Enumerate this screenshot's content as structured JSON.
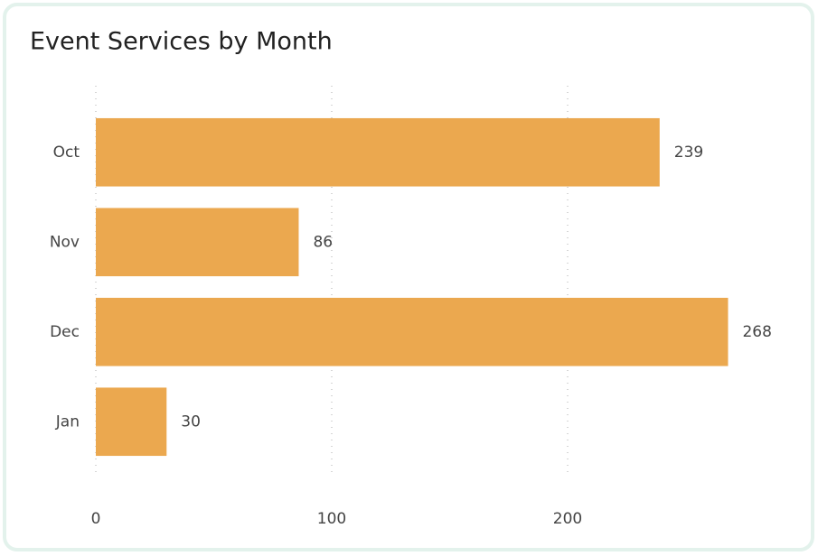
{
  "chart_data": {
    "type": "bar",
    "orientation": "horizontal",
    "title": "Event Services by Month",
    "categories": [
      "Oct",
      "Nov",
      "Dec",
      "Jan"
    ],
    "values": [
      239,
      86,
      268,
      30
    ],
    "color": "#eba84f",
    "xlim": [
      0,
      300
    ],
    "xticks": [
      0,
      100,
      200
    ],
    "grid": true
  }
}
